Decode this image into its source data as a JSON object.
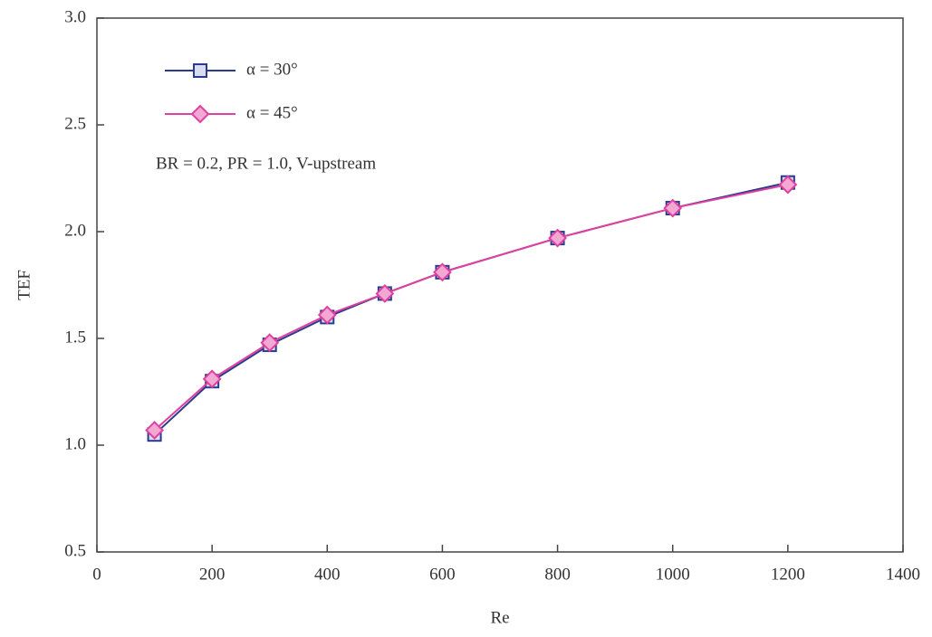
{
  "chart_data": {
    "type": "line",
    "x_label": "Re",
    "y_label": "TEF",
    "annotation": "BR = 0.2, PR = 1.0, V-upstream",
    "x": [
      100,
      200,
      300,
      400,
      500,
      600,
      800,
      1000,
      1200
    ],
    "series": [
      {
        "name": "α = 30°",
        "color": "#2b3a8c",
        "marker": "square",
        "values": [
          1.05,
          1.3,
          1.47,
          1.6,
          1.71,
          1.81,
          1.97,
          2.11,
          2.23
        ]
      },
      {
        "name": "α = 45°",
        "color": "#e0409f",
        "marker": "diamond",
        "values": [
          1.07,
          1.31,
          1.48,
          1.61,
          1.71,
          1.81,
          1.97,
          2.11,
          2.22
        ]
      }
    ],
    "xlim": [
      0,
      1400
    ],
    "xticks": [
      0,
      200,
      400,
      600,
      800,
      1000,
      1200,
      1400
    ],
    "ylim": [
      0.5,
      3.0
    ],
    "yticks": [
      0.5,
      {
        "value": 1.0,
        "label": "1.0"
      },
      1.5,
      {
        "value": 2.0,
        "label": "2.0"
      },
      2.5,
      {
        "value": 3.0,
        "label": "3.0"
      }
    ],
    "grid": false
  }
}
